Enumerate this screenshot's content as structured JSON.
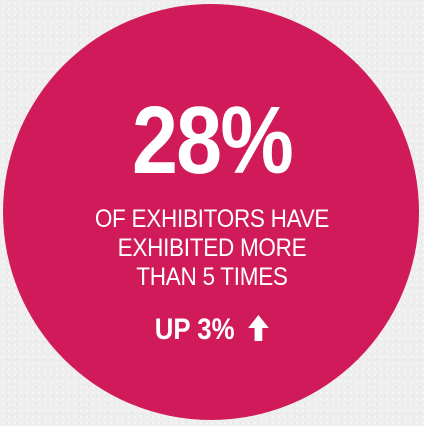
{
  "colors": {
    "circle": "#d01a5a",
    "text": "#ffffff",
    "background": "#eeeeee"
  },
  "stat": {
    "value": "28%",
    "description_lines": [
      "OF EXHIBITORS HAVE",
      "EXHIBITED MORE",
      "THAN 5 TIMES"
    ],
    "change": "UP 3%",
    "change_icon": "arrow-up-icon"
  }
}
